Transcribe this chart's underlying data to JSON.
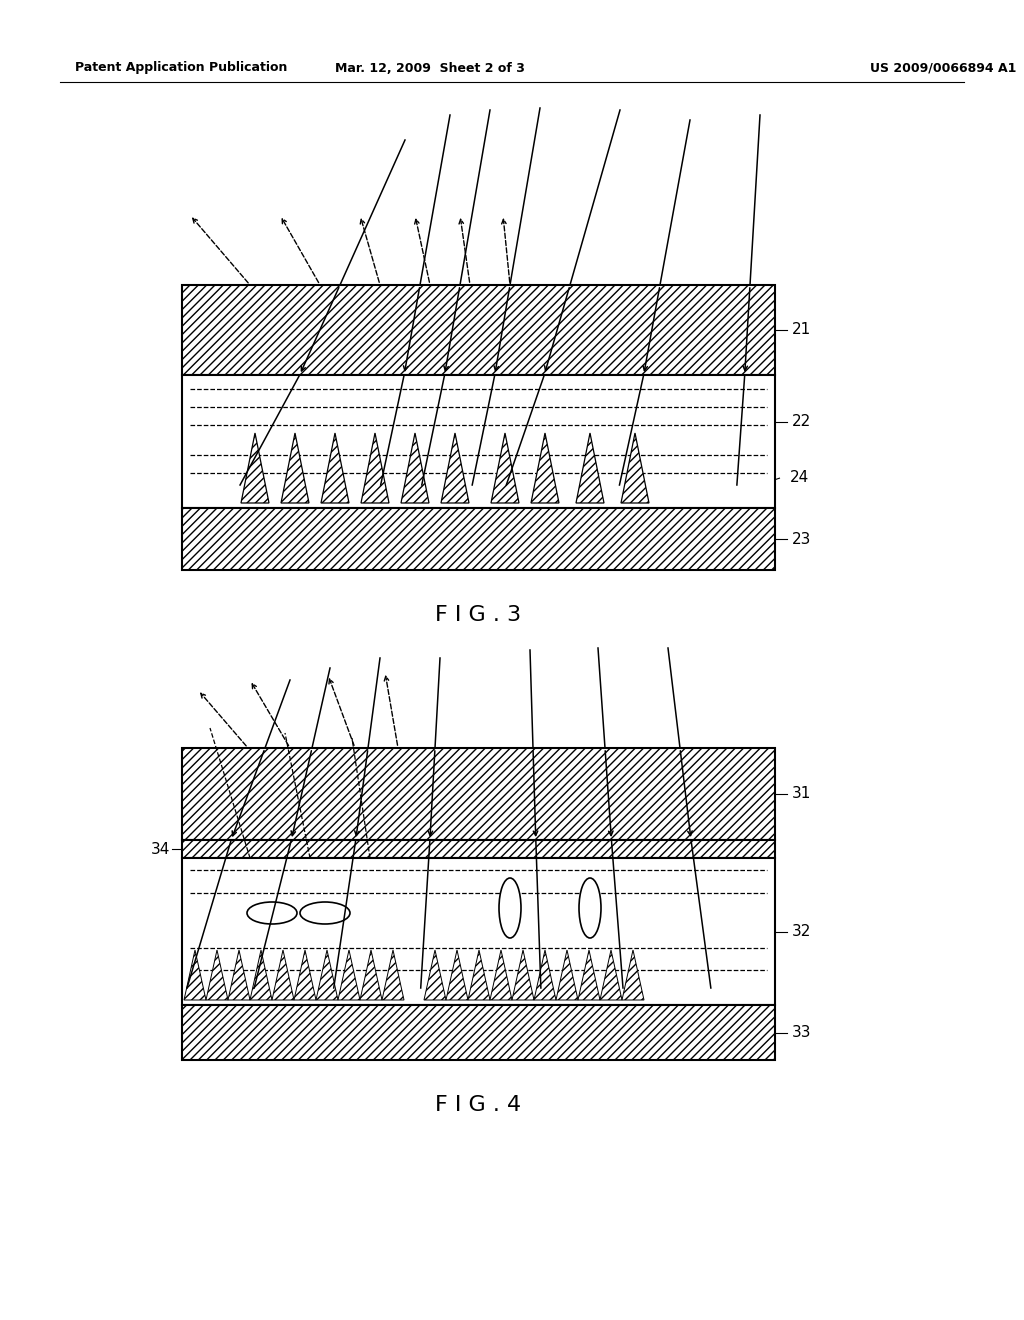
{
  "bg_color": "#ffffff",
  "header_left": "Patent Application Publication",
  "header_mid": "Mar. 12, 2009  Sheet 2 of 3",
  "header_right": "US 2009/0066894 A1",
  "fig3_label": "F I G . 3",
  "fig4_label": "F I G . 4"
}
